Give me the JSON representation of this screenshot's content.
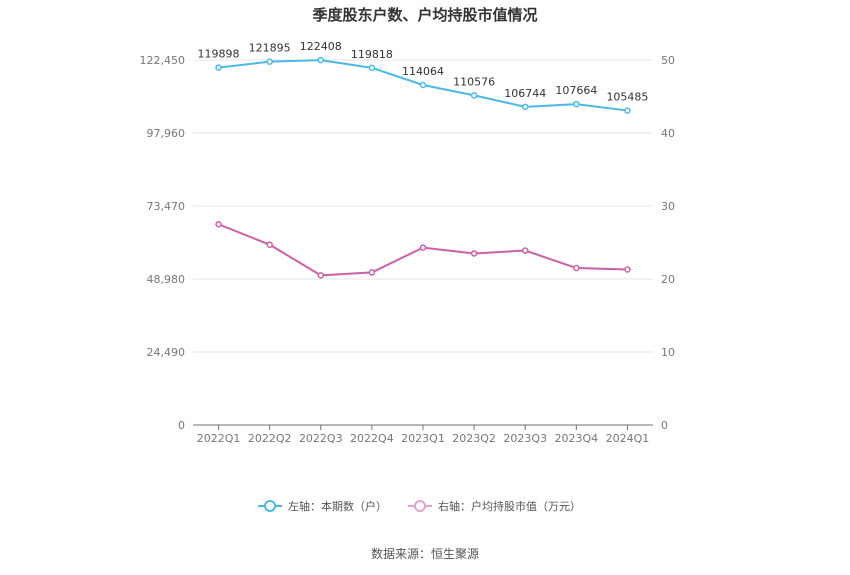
{
  "chart_data": {
    "type": "line",
    "title": "季度股东户数、户均持股市值情况",
    "categories": [
      "2022Q1",
      "2022Q2",
      "2022Q3",
      "2022Q4",
      "2023Q1",
      "2023Q2",
      "2023Q3",
      "2023Q4",
      "2024Q1"
    ],
    "series": [
      {
        "name": "左轴：本期数（户）",
        "axis": "left",
        "color": "#4bb8e8",
        "values": [
          119898,
          121895,
          122408,
          119818,
          114064,
          110576,
          106744,
          107664,
          105485
        ],
        "labels": [
          "119898",
          "121895",
          "122408",
          "119818",
          "114064",
          "110576",
          "106744",
          "107664",
          "105485"
        ]
      },
      {
        "name": "右轴：户均持股市值（万元）",
        "axis": "right",
        "color": "#cc5fa6",
        "legend_color": "#e3a3cc",
        "values": [
          27.5,
          24.7,
          20.5,
          20.9,
          24.3,
          23.5,
          23.9,
          21.5,
          21.3
        ]
      }
    ],
    "left_axis": {
      "ylim": [
        0,
        122450
      ],
      "ticks": [
        "0",
        "24,490",
        "48,980",
        "73,470",
        "97,960",
        "122,450"
      ]
    },
    "right_axis": {
      "ylim": [
        0,
        50
      ],
      "ticks": [
        "0",
        "10",
        "20",
        "30",
        "40",
        "50"
      ]
    },
    "grid": true,
    "legend_position": "bottom"
  },
  "source": "数据来源：恒生聚源"
}
